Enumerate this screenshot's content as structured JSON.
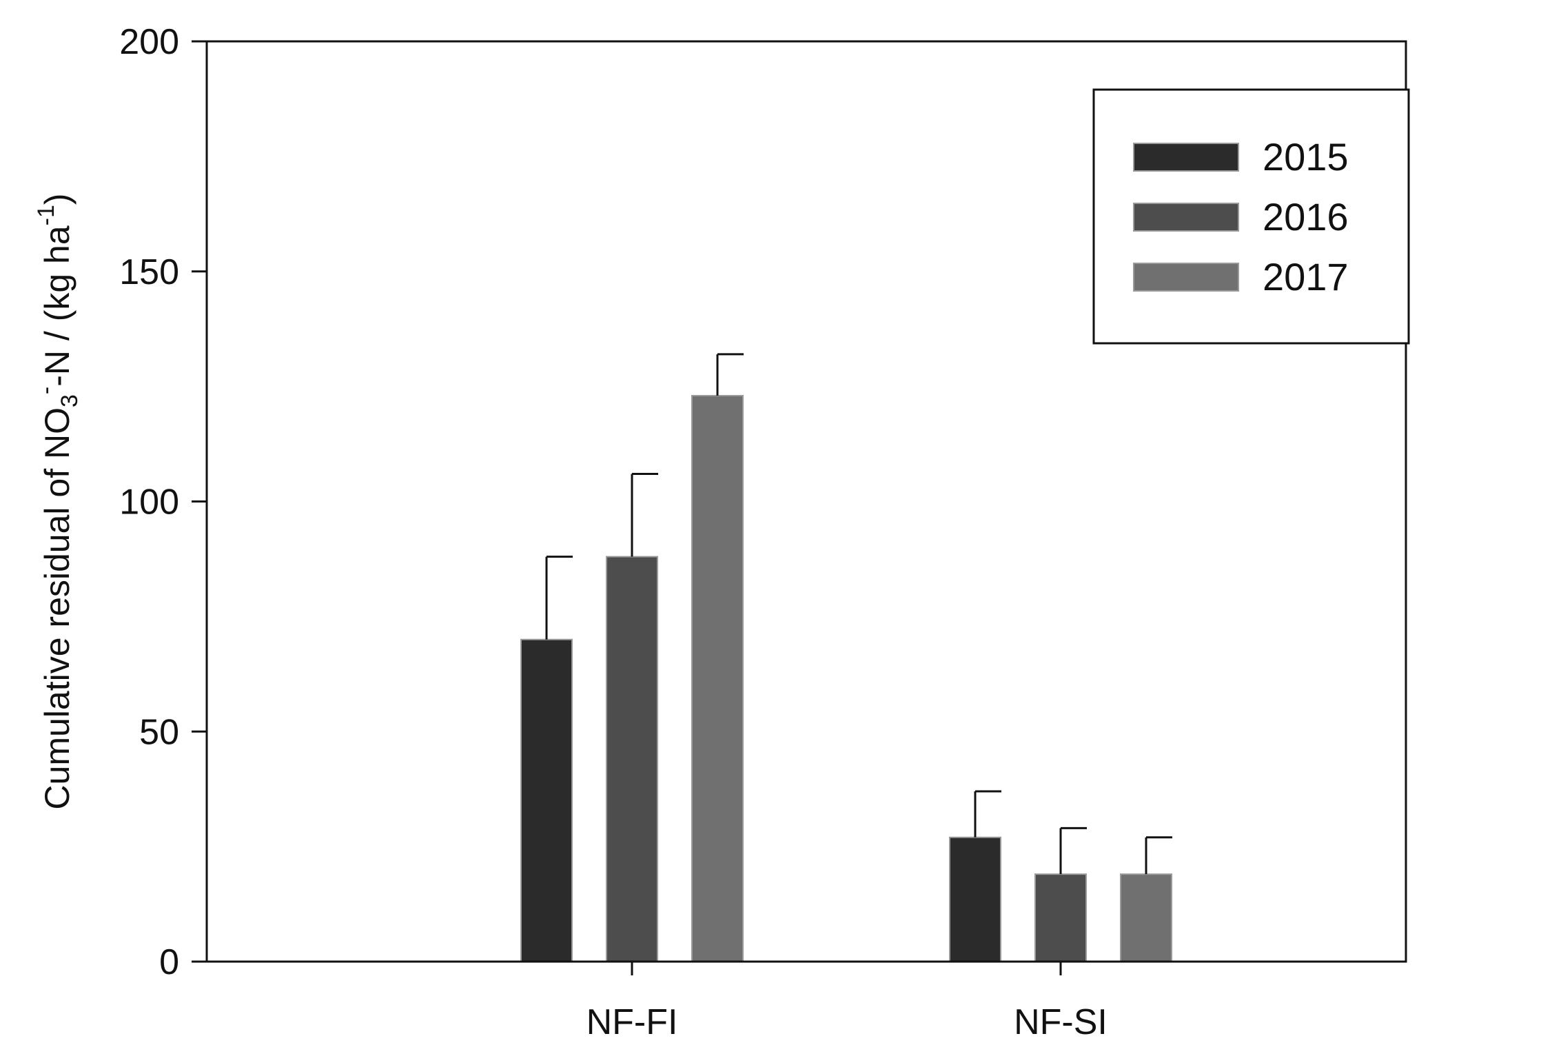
{
  "chart_data": {
    "type": "bar",
    "title": "",
    "xlabel": "",
    "ylabel": {
      "prefix": "Cumulative residual of NO",
      "sub": "3",
      "sup": "-",
      "middle": "-N / (kg ha",
      "sup2": "-1",
      "suffix": ")"
    },
    "ylim": [
      0,
      200
    ],
    "yticks": [
      "0",
      "50",
      "100",
      "150",
      "200"
    ],
    "categories": [
      "NF-FI",
      "NF-SI"
    ],
    "series": [
      {
        "name": "2015",
        "color": "#2b2b2b",
        "values": [
          70,
          27
        ],
        "errors": [
          18,
          10
        ]
      },
      {
        "name": "2016",
        "color": "#4d4d4d",
        "values": [
          88,
          19
        ],
        "errors": [
          18,
          10
        ]
      },
      {
        "name": "2017",
        "color": "#707070",
        "values": [
          123,
          19
        ],
        "errors": [
          9,
          8
        ]
      }
    ],
    "legend_position": "top-right",
    "grid": false
  }
}
